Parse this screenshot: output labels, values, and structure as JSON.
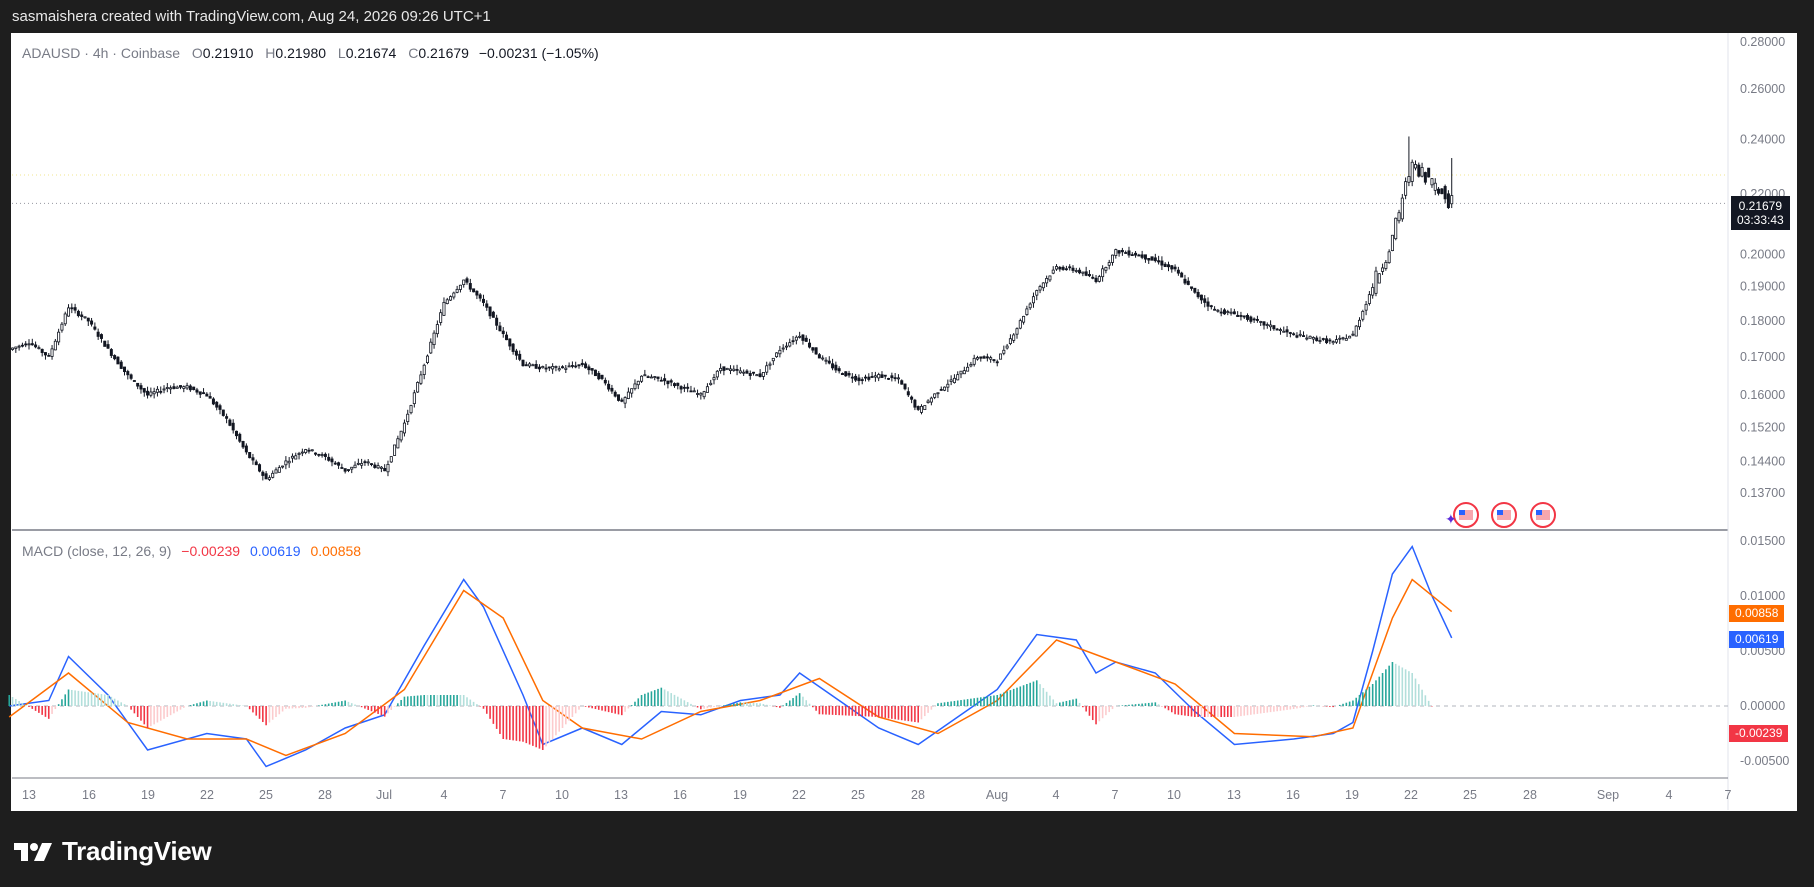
{
  "header": {
    "attribution": "sasmaishera created with TradingView.com, Aug 24, 2026 09:26 UTC+1"
  },
  "price_legend": {
    "symbol": "ADAUSD",
    "interval": "4h",
    "exchange": "Coinbase",
    "open_label": "O",
    "open": "0.21910",
    "high_label": "H",
    "high": "0.21980",
    "low_label": "L",
    "low": "0.21674",
    "close_label": "C",
    "close": "0.21679",
    "change": "−0.00231 (−1.05%)"
  },
  "macd_legend": {
    "name": "MACD (close, 12, 26, 9)",
    "histogram": "−0.00239",
    "macd": "0.00619",
    "signal": "0.00858"
  },
  "price_tag": {
    "value": "0.21679",
    "countdown": "03:33:43"
  },
  "macd_tags": {
    "signal": "0.00858",
    "macd": "0.00619",
    "histogram": "-0.00239"
  },
  "brand": {
    "name": "TradingView"
  },
  "colors": {
    "up": "#131722",
    "macd_line": "#2962ff",
    "signal_line": "#ff6d00",
    "hist_pos": "#26a69a",
    "hist_neg": "#f23645",
    "background": "#1e1e1e"
  },
  "chart_data": [
    {
      "type": "candlestick",
      "title": "ADAUSD · 4h · Coinbase",
      "y_axis_ticks": [
        "0.28000",
        "0.26000",
        "0.24000",
        "0.22000",
        "0.20000",
        "0.19000",
        "0.18000",
        "0.17000",
        "0.16000",
        "0.15200",
        "0.14400",
        "0.13700"
      ],
      "y_scale": "log",
      "x_axis_ticks": [
        "13",
        "16",
        "19",
        "22",
        "25",
        "28",
        "Jul",
        "4",
        "7",
        "10",
        "13",
        "16",
        "19",
        "22",
        "25",
        "28",
        "Aug",
        "4",
        "7",
        "10",
        "13",
        "16",
        "19",
        "22",
        "25",
        "28",
        "Sep",
        "4",
        "7"
      ],
      "last_price": 0.21679,
      "closes_approx": [
        {
          "x": "Jun 12",
          "y": 0.172
        },
        {
          "x": "Jun 13",
          "y": 0.174
        },
        {
          "x": "Jun 14",
          "y": 0.17
        },
        {
          "x": "Jun 15",
          "y": 0.184
        },
        {
          "x": "Jun 16",
          "y": 0.18
        },
        {
          "x": "Jun 17",
          "y": 0.172
        },
        {
          "x": "Jun 18",
          "y": 0.165
        },
        {
          "x": "Jun 19",
          "y": 0.16
        },
        {
          "x": "Jun 20",
          "y": 0.162
        },
        {
          "x": "Jun 21",
          "y": 0.162
        },
        {
          "x": "Jun 22",
          "y": 0.16
        },
        {
          "x": "Jun 23",
          "y": 0.154
        },
        {
          "x": "Jun 24",
          "y": 0.146
        },
        {
          "x": "Jun 25",
          "y": 0.14
        },
        {
          "x": "Jun 26",
          "y": 0.144
        },
        {
          "x": "Jun 27",
          "y": 0.147
        },
        {
          "x": "Jun 28",
          "y": 0.145
        },
        {
          "x": "Jun 29",
          "y": 0.142
        },
        {
          "x": "Jun 30",
          "y": 0.144
        },
        {
          "x": "Jul 1",
          "y": 0.142
        },
        {
          "x": "Jul 2",
          "y": 0.153
        },
        {
          "x": "Jul 3",
          "y": 0.168
        },
        {
          "x": "Jul 4",
          "y": 0.185
        },
        {
          "x": "Jul 5",
          "y": 0.192
        },
        {
          "x": "Jul 6",
          "y": 0.185
        },
        {
          "x": "Jul 7",
          "y": 0.176
        },
        {
          "x": "Jul 8",
          "y": 0.168
        },
        {
          "x": "Jul 9",
          "y": 0.167
        },
        {
          "x": "Jul 10",
          "y": 0.167
        },
        {
          "x": "Jul 11",
          "y": 0.168
        },
        {
          "x": "Jul 12",
          "y": 0.164
        },
        {
          "x": "Jul 13",
          "y": 0.158
        },
        {
          "x": "Jul 14",
          "y": 0.165
        },
        {
          "x": "Jul 15",
          "y": 0.164
        },
        {
          "x": "Jul 16",
          "y": 0.162
        },
        {
          "x": "Jul 17",
          "y": 0.16
        },
        {
          "x": "Jul 18",
          "y": 0.167
        },
        {
          "x": "Jul 19",
          "y": 0.166
        },
        {
          "x": "Jul 20",
          "y": 0.165
        },
        {
          "x": "Jul 21",
          "y": 0.172
        },
        {
          "x": "Jul 22",
          "y": 0.176
        },
        {
          "x": "Jul 23",
          "y": 0.17
        },
        {
          "x": "Jul 24",
          "y": 0.166
        },
        {
          "x": "Jul 25",
          "y": 0.164
        },
        {
          "x": "Jul 26",
          "y": 0.165
        },
        {
          "x": "Jul 27",
          "y": 0.164
        },
        {
          "x": "Jul 28",
          "y": 0.156
        },
        {
          "x": "Jul 29",
          "y": 0.161
        },
        {
          "x": "Jul 30",
          "y": 0.165
        },
        {
          "x": "Jul 31",
          "y": 0.17
        },
        {
          "x": "Aug 1",
          "y": 0.169
        },
        {
          "x": "Aug 2",
          "y": 0.178
        },
        {
          "x": "Aug 3",
          "y": 0.189
        },
        {
          "x": "Aug 4",
          "y": 0.196
        },
        {
          "x": "Aug 5",
          "y": 0.195
        },
        {
          "x": "Aug 6",
          "y": 0.192
        },
        {
          "x": "Aug 7",
          "y": 0.201
        },
        {
          "x": "Aug 8",
          "y": 0.2
        },
        {
          "x": "Aug 9",
          "y": 0.198
        },
        {
          "x": "Aug 10",
          "y": 0.195
        },
        {
          "x": "Aug 11",
          "y": 0.188
        },
        {
          "x": "Aug 12",
          "y": 0.183
        },
        {
          "x": "Aug 13",
          "y": 0.182
        },
        {
          "x": "Aug 14",
          "y": 0.18
        },
        {
          "x": "Aug 15",
          "y": 0.178
        },
        {
          "x": "Aug 16",
          "y": 0.176
        },
        {
          "x": "Aug 17",
          "y": 0.175
        },
        {
          "x": "Aug 18",
          "y": 0.174
        },
        {
          "x": "Aug 19",
          "y": 0.176
        },
        {
          "x": "Aug 20",
          "y": 0.19
        },
        {
          "x": "Aug 21",
          "y": 0.205
        },
        {
          "x": "Aug 22",
          "y": 0.232
        },
        {
          "x": "Aug 23",
          "y": 0.224
        },
        {
          "x": "Aug 24",
          "y": 0.21679
        }
      ]
    },
    {
      "type": "line",
      "title": "MACD (close, 12, 26, 9)",
      "y_axis_ticks": [
        "0.01500",
        "0.01000",
        "0.00500",
        "0.00000",
        "-0.00500"
      ],
      "series": [
        {
          "name": "MACD",
          "color": "#2962ff",
          "last": 0.00619,
          "values_approx": [
            {
              "x": "Jun 12",
              "y": 0.0
            },
            {
              "x": "Jun 14",
              "y": 0.0005
            },
            {
              "x": "Jun 15",
              "y": 0.0045
            },
            {
              "x": "Jun 17",
              "y": 0.001
            },
            {
              "x": "Jun 19",
              "y": -0.004
            },
            {
              "x": "Jun 22",
              "y": -0.0025
            },
            {
              "x": "Jun 24",
              "y": -0.003
            },
            {
              "x": "Jun 25",
              "y": -0.0055
            },
            {
              "x": "Jun 27",
              "y": -0.004
            },
            {
              "x": "Jun 29",
              "y": -0.002
            },
            {
              "x": "Jul 1",
              "y": -0.0008
            },
            {
              "x": "Jul 3",
              "y": 0.0055
            },
            {
              "x": "Jul 5",
              "y": 0.0115
            },
            {
              "x": "Jul 6",
              "y": 0.009
            },
            {
              "x": "Jul 8",
              "y": 0.001
            },
            {
              "x": "Jul 9",
              "y": -0.0035
            },
            {
              "x": "Jul 11",
              "y": -0.002
            },
            {
              "x": "Jul 13",
              "y": -0.0035
            },
            {
              "x": "Jul 15",
              "y": -0.0005
            },
            {
              "x": "Jul 17",
              "y": -0.0008
            },
            {
              "x": "Jul 19",
              "y": 0.0005
            },
            {
              "x": "Jul 21",
              "y": 0.001
            },
            {
              "x": "Jul 22",
              "y": 0.003
            },
            {
              "x": "Jul 24",
              "y": 0.0005
            },
            {
              "x": "Jul 26",
              "y": -0.002
            },
            {
              "x": "Jul 28",
              "y": -0.0035
            },
            {
              "x": "Jul 30",
              "y": -0.001
            },
            {
              "x": "Aug 1",
              "y": 0.0015
            },
            {
              "x": "Aug 3",
              "y": 0.0065
            },
            {
              "x": "Aug 5",
              "y": 0.006
            },
            {
              "x": "Aug 6",
              "y": 0.003
            },
            {
              "x": "Aug 7",
              "y": 0.004
            },
            {
              "x": "Aug 9",
              "y": 0.003
            },
            {
              "x": "Aug 11",
              "y": -0.0005
            },
            {
              "x": "Aug 13",
              "y": -0.0035
            },
            {
              "x": "Aug 16",
              "y": -0.003
            },
            {
              "x": "Aug 18",
              "y": -0.0025
            },
            {
              "x": "Aug 19",
              "y": -0.0015
            },
            {
              "x": "Aug 20",
              "y": 0.005
            },
            {
              "x": "Aug 21",
              "y": 0.012
            },
            {
              "x": "Aug 22",
              "y": 0.0145
            },
            {
              "x": "Aug 23",
              "y": 0.01
            },
            {
              "x": "Aug 24",
              "y": 0.00619
            }
          ]
        },
        {
          "name": "Signal",
          "color": "#ff6d00",
          "last": 0.00858,
          "values_approx": [
            {
              "x": "Jun 12",
              "y": -0.001
            },
            {
              "x": "Jun 15",
              "y": 0.003
            },
            {
              "x": "Jun 18",
              "y": -0.0015
            },
            {
              "x": "Jun 21",
              "y": -0.003
            },
            {
              "x": "Jun 24",
              "y": -0.003
            },
            {
              "x": "Jun 26",
              "y": -0.0045
            },
            {
              "x": "Jun 29",
              "y": -0.0025
            },
            {
              "x": "Jul 2",
              "y": 0.0015
            },
            {
              "x": "Jul 5",
              "y": 0.0105
            },
            {
              "x": "Jul 7",
              "y": 0.008
            },
            {
              "x": "Jul 9",
              "y": 0.0005
            },
            {
              "x": "Jul 11",
              "y": -0.002
            },
            {
              "x": "Jul 14",
              "y": -0.003
            },
            {
              "x": "Jul 17",
              "y": -0.0005
            },
            {
              "x": "Jul 20",
              "y": 0.0005
            },
            {
              "x": "Jul 23",
              "y": 0.0025
            },
            {
              "x": "Jul 26",
              "y": -0.001
            },
            {
              "x": "Jul 29",
              "y": -0.0025
            },
            {
              "x": "Aug 1",
              "y": 0.0005
            },
            {
              "x": "Aug 4",
              "y": 0.006
            },
            {
              "x": "Aug 7",
              "y": 0.004
            },
            {
              "x": "Aug 10",
              "y": 0.002
            },
            {
              "x": "Aug 13",
              "y": -0.0025
            },
            {
              "x": "Aug 17",
              "y": -0.0028
            },
            {
              "x": "Aug 19",
              "y": -0.002
            },
            {
              "x": "Aug 21",
              "y": 0.008
            },
            {
              "x": "Aug 22",
              "y": 0.0115
            },
            {
              "x": "Aug 24",
              "y": 0.00858
            }
          ]
        },
        {
          "name": "Histogram",
          "type": "bar",
          "last": -0.00239
        }
      ]
    }
  ]
}
